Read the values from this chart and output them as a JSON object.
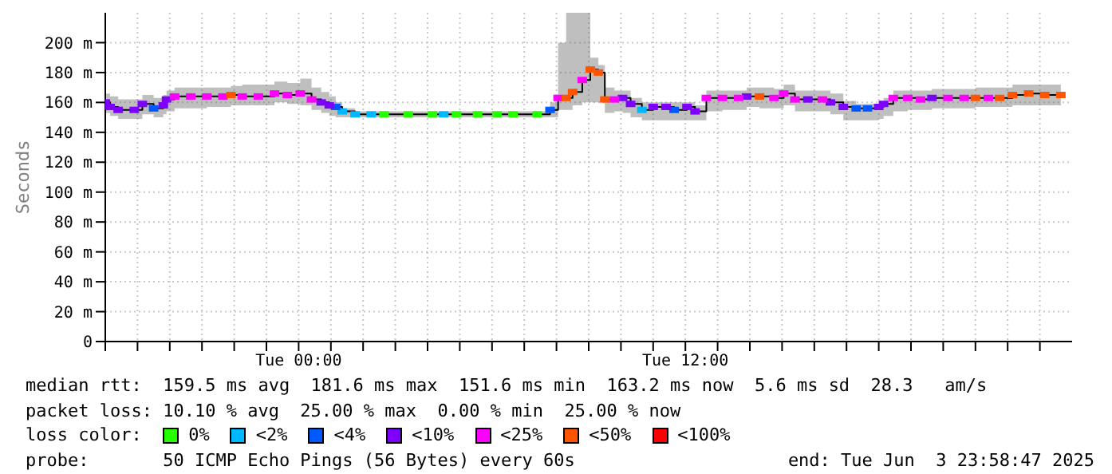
{
  "chart_data": {
    "type": "scatter",
    "ylabel": "Seconds",
    "legend_title": "loss color:",
    "legend": "bottom",
    "marker": "square",
    "grid": true,
    "xlim": [
      "2025-06-02T18:00",
      "2025-06-04T00:00"
    ],
    "xticks": [
      {
        "value": "2025-06-02T18:00",
        "label": null
      },
      {
        "value": "2025-06-02T19:00",
        "label": null
      },
      {
        "value": "2025-06-02T20:00",
        "label": null
      },
      {
        "value": "2025-06-02T21:00",
        "label": null
      },
      {
        "value": "2025-06-02T22:00",
        "label": null
      },
      {
        "value": "2025-06-02T23:00",
        "label": null
      },
      {
        "value": "2025-06-03T00:00",
        "label": "Tue 00:00"
      },
      {
        "value": "2025-06-03T01:00",
        "label": null
      },
      {
        "value": "2025-06-03T02:00",
        "label": null
      },
      {
        "value": "2025-06-03T03:00",
        "label": null
      },
      {
        "value": "2025-06-03T04:00",
        "label": null
      },
      {
        "value": "2025-06-03T05:00",
        "label": null
      },
      {
        "value": "2025-06-03T06:00",
        "label": null
      },
      {
        "value": "2025-06-03T07:00",
        "label": null
      },
      {
        "value": "2025-06-03T08:00",
        "label": null
      },
      {
        "value": "2025-06-03T09:00",
        "label": null
      },
      {
        "value": "2025-06-03T10:00",
        "label": null
      },
      {
        "value": "2025-06-03T11:00",
        "label": null
      },
      {
        "value": "2025-06-03T12:00",
        "label": "Tue 12:00"
      },
      {
        "value": "2025-06-03T13:00",
        "label": null
      },
      {
        "value": "2025-06-03T14:00",
        "label": null
      },
      {
        "value": "2025-06-03T15:00",
        "label": null
      },
      {
        "value": "2025-06-03T16:00",
        "label": null
      },
      {
        "value": "2025-06-03T17:00",
        "label": null
      },
      {
        "value": "2025-06-03T18:00",
        "label": null
      },
      {
        "value": "2025-06-03T19:00",
        "label": null
      },
      {
        "value": "2025-06-03T20:00",
        "label": null
      },
      {
        "value": "2025-06-03T21:00",
        "label": null
      },
      {
        "value": "2025-06-03T22:00",
        "label": null
      },
      {
        "value": "2025-06-03T23:00",
        "label": null
      }
    ],
    "ylim": [
      0,
      220
    ],
    "yticks": [
      0,
      {
        "value": 20,
        "label": "20 m"
      },
      {
        "value": 40,
        "label": "40 m"
      },
      {
        "value": 60,
        "label": "60 m"
      },
      {
        "value": 80,
        "label": "80 m"
      },
      {
        "value": 100,
        "label": "100 m"
      },
      {
        "value": 120,
        "label": "120 m"
      },
      {
        "value": 140,
        "label": "140 m"
      },
      {
        "value": 160,
        "label": "160 m"
      },
      {
        "value": 180,
        "label": "180 m"
      },
      {
        "value": 200,
        "label": "200 m"
      }
    ],
    "series": [
      {
        "type": "step",
        "color": "#000000",
        "marker": "none",
        "x": [
          "2025-06-02T18:00",
          "2025-06-02T18:09",
          "2025-06-02T18:24",
          "2025-06-02T18:54",
          "2025-06-02T19:09",
          "2025-06-02T19:30",
          "2025-06-02T19:48",
          "2025-06-02T19:54",
          "2025-06-02T20:09",
          "2025-06-02T20:39",
          "2025-06-02T21:09",
          "2025-06-02T21:39",
          "2025-06-02T21:54",
          "2025-06-02T22:15",
          "2025-06-02T22:45",
          "2025-06-02T23:15",
          "2025-06-02T23:39",
          "2025-06-03T00:03",
          "2025-06-03T00:24",
          "2025-06-03T00:42",
          "2025-06-03T00:57",
          "2025-06-03T01:09",
          "2025-06-03T01:21",
          "2025-06-03T01:45",
          "2025-06-03T02:15",
          "2025-06-03T02:39",
          "2025-06-03T03:24",
          "2025-06-03T04:09",
          "2025-06-03T04:30",
          "2025-06-03T04:54",
          "2025-06-03T05:33",
          "2025-06-03T06:09",
          "2025-06-03T06:39",
          "2025-06-03T07:24",
          "2025-06-03T07:48",
          "2025-06-03T08:03",
          "2025-06-03T08:18",
          "2025-06-03T08:30",
          "2025-06-03T08:48",
          "2025-06-03T09:03",
          "2025-06-03T09:18",
          "2025-06-03T09:30",
          "2025-06-03T09:48",
          "2025-06-03T10:03",
          "2025-06-03T10:18",
          "2025-06-03T10:39",
          "2025-06-03T11:00",
          "2025-06-03T11:24",
          "2025-06-03T11:39",
          "2025-06-03T12:03",
          "2025-06-03T12:18",
          "2025-06-03T12:39",
          "2025-06-03T13:09",
          "2025-06-03T13:39",
          "2025-06-03T13:54",
          "2025-06-03T14:18",
          "2025-06-03T14:45",
          "2025-06-03T15:03",
          "2025-06-03T15:24",
          "2025-06-03T15:48",
          "2025-06-03T16:15",
          "2025-06-03T16:30",
          "2025-06-03T16:54",
          "2025-06-03T17:18",
          "2025-06-03T17:39",
          "2025-06-03T18:00",
          "2025-06-03T18:09",
          "2025-06-03T18:27",
          "2025-06-03T18:54",
          "2025-06-03T19:18",
          "2025-06-03T19:39",
          "2025-06-03T20:09",
          "2025-06-03T20:39",
          "2025-06-03T21:00",
          "2025-06-03T21:24",
          "2025-06-03T21:45",
          "2025-06-03T22:09",
          "2025-06-03T22:39",
          "2025-06-03T23:09",
          "2025-06-03T23:39"
        ],
        "values": [
          160,
          157,
          155,
          155,
          159,
          156,
          158,
          162,
          164,
          164,
          164,
          164,
          165,
          164,
          164,
          166,
          165,
          166,
          162,
          160,
          158,
          157,
          154,
          152,
          152,
          152,
          152,
          152,
          152,
          152,
          152,
          152,
          152,
          152,
          155,
          163,
          163,
          167,
          175,
          182,
          180,
          162,
          162,
          163,
          159,
          155,
          157,
          157,
          155,
          157,
          154,
          163,
          163,
          163,
          164,
          164,
          163,
          166,
          162,
          162,
          162,
          160,
          157,
          156,
          156,
          157,
          159,
          163,
          163,
          162,
          163,
          163,
          163,
          163,
          163,
          163,
          165,
          166,
          165,
          165
        ],
        "lower": [
          153,
          151,
          149,
          149,
          152,
          150,
          152,
          154,
          156,
          156,
          157,
          157,
          158,
          158,
          158,
          160,
          159,
          158,
          155,
          153,
          151,
          150,
          150,
          150,
          150,
          150,
          150,
          150,
          150,
          150,
          150,
          150,
          150,
          150,
          150,
          155,
          155,
          158,
          160,
          160,
          160,
          153,
          154,
          153,
          150,
          148,
          148,
          148,
          148,
          148,
          148,
          154,
          155,
          155,
          157,
          156,
          156,
          158,
          154,
          154,
          154,
          152,
          148,
          148,
          148,
          149,
          151,
          154,
          155,
          155,
          156,
          156,
          156,
          157,
          157,
          157,
          158,
          158,
          158,
          158
        ],
        "upper": [
          166,
          164,
          162,
          162,
          165,
          163,
          165,
          168,
          170,
          170,
          170,
          170,
          171,
          172,
          172,
          174,
          173,
          176,
          170,
          167,
          164,
          160,
          156,
          154,
          154,
          154,
          154,
          154,
          154,
          154,
          154,
          154,
          154,
          154,
          160,
          200,
          220,
          220,
          220,
          190,
          185,
          170,
          168,
          168,
          163,
          160,
          160,
          160,
          160,
          160,
          158,
          168,
          168,
          168,
          170,
          170,
          169,
          172,
          168,
          168,
          168,
          166,
          161,
          159,
          159,
          161,
          163,
          168,
          168,
          168,
          169,
          169,
          169,
          170,
          170,
          170,
          172,
          172,
          172,
          172
        ]
      },
      {
        "name": "0%",
        "color": "#26ff00",
        "x": [
          "2025-06-03T02:39",
          "2025-06-03T03:24",
          "2025-06-03T04:09",
          "2025-06-03T04:54",
          "2025-06-03T05:33",
          "2025-06-03T06:09",
          "2025-06-03T06:39",
          "2025-06-03T07:24"
        ],
        "values": [
          152,
          152,
          152,
          152,
          152,
          152,
          152,
          152
        ]
      },
      {
        "name": "<2%",
        "color": "#00b8ff",
        "x": [
          "2025-06-03T01:21",
          "2025-06-03T01:45",
          "2025-06-03T02:15",
          "2025-06-03T04:30",
          "2025-06-03T10:39"
        ],
        "values": [
          154,
          152,
          152,
          152,
          155
        ]
      },
      {
        "name": "<4%",
        "color": "#0059ff",
        "x": [
          "2025-06-02T19:30",
          "2025-06-03T01:09",
          "2025-06-03T07:48",
          "2025-06-03T11:39",
          "2025-06-03T17:18",
          "2025-06-03T17:39"
        ],
        "values": [
          156,
          157,
          155,
          155,
          156,
          156
        ]
      },
      {
        "name": "<10%",
        "color": "#7e00ff",
        "x": [
          "2025-06-02T18:00",
          "2025-06-02T18:09",
          "2025-06-02T18:24",
          "2025-06-02T18:54",
          "2025-06-02T19:09",
          "2025-06-02T19:48",
          "2025-06-02T19:54",
          "2025-06-03T00:42",
          "2025-06-03T00:57",
          "2025-06-03T10:03",
          "2025-06-03T10:18",
          "2025-06-03T11:00",
          "2025-06-03T11:24",
          "2025-06-03T12:03",
          "2025-06-03T12:18",
          "2025-06-03T13:54",
          "2025-06-03T15:48",
          "2025-06-03T16:30",
          "2025-06-03T16:54",
          "2025-06-03T18:00",
          "2025-06-03T18:09",
          "2025-06-03T19:39"
        ],
        "values": [
          160,
          157,
          155,
          155,
          159,
          158,
          162,
          160,
          158,
          163,
          159,
          157,
          157,
          157,
          154,
          164,
          162,
          160,
          157,
          157,
          159,
          163
        ]
      },
      {
        "name": "<25%",
        "color": "#ff00fe",
        "x": [
          "2025-06-02T20:09",
          "2025-06-02T20:39",
          "2025-06-02T21:09",
          "2025-06-02T21:39",
          "2025-06-02T22:15",
          "2025-06-02T22:45",
          "2025-06-02T23:15",
          "2025-06-02T23:39",
          "2025-06-03T00:03",
          "2025-06-03T00:24",
          "2025-06-03T08:03",
          "2025-06-03T08:48",
          "2025-06-03T09:48",
          "2025-06-03T12:39",
          "2025-06-03T13:09",
          "2025-06-03T13:39",
          "2025-06-03T14:45",
          "2025-06-03T15:03",
          "2025-06-03T15:24",
          "2025-06-03T16:15",
          "2025-06-03T18:27",
          "2025-06-03T18:54",
          "2025-06-03T19:18",
          "2025-06-03T20:09",
          "2025-06-03T20:39",
          "2025-06-03T21:24"
        ],
        "values": [
          164,
          164,
          164,
          164,
          164,
          164,
          166,
          165,
          166,
          162,
          163,
          175,
          162,
          163,
          163,
          163,
          163,
          166,
          162,
          162,
          163,
          163,
          162,
          163,
          163,
          163
        ]
      },
      {
        "name": "<50%",
        "color": "#ff5500",
        "x": [
          "2025-06-02T21:54",
          "2025-06-03T08:18",
          "2025-06-03T08:30",
          "2025-06-03T09:03",
          "2025-06-03T09:18",
          "2025-06-03T09:30",
          "2025-06-03T14:18",
          "2025-06-03T21:00",
          "2025-06-03T21:45",
          "2025-06-03T22:09",
          "2025-06-03T22:39",
          "2025-06-03T23:09",
          "2025-06-03T23:39"
        ],
        "values": [
          165,
          163,
          167,
          182,
          180,
          162,
          164,
          163,
          163,
          165,
          166,
          165,
          165
        ]
      },
      {
        "name": "<100%",
        "color": "#ff0000"
      }
    ],
    "annotations": [
      "median rtt:  159.5 ms avg  181.6 ms max  151.6 ms min  163.2 ms now  5.6 ms sd  28.3   am/s",
      "packet loss: 10.10 % avg  25.00 % max  0.00 % min  25.00 % now",
      "probe:       50 ICMP Echo Pings (56 Bytes) every 60s",
      "end: Tue Jun  3 23:58:47 2025"
    ]
  }
}
